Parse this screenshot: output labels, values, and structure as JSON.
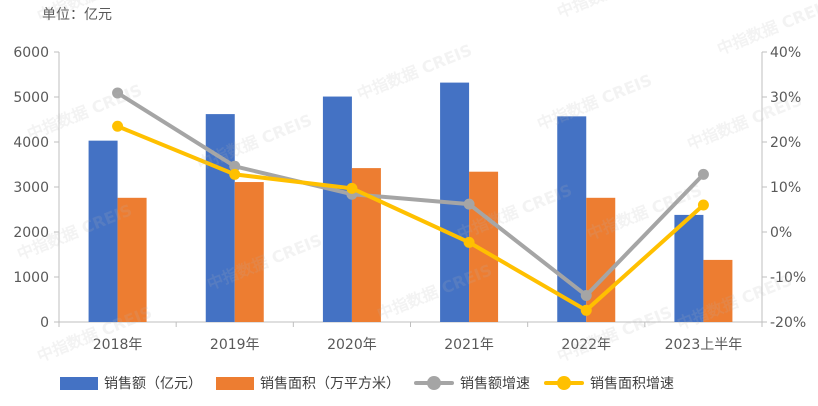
{
  "unit_label": "单位：亿元",
  "watermark": "中指数据 CREIS",
  "colors": {
    "sales_amount": "#4472C4",
    "sales_area": "#ED7D31",
    "amount_growth": "#A5A5A5",
    "area_growth": "#FFC000",
    "axis": "#595959",
    "tick": "#BFBFBF"
  },
  "legend": [
    {
      "label": "销售额（亿元）",
      "kind": "bar",
      "color": "#4472C4"
    },
    {
      "label": "销售面积（万平方米）",
      "kind": "bar",
      "color": "#ED7D31"
    },
    {
      "label": "销售额增速",
      "kind": "line",
      "color": "#A5A5A5"
    },
    {
      "label": "销售面积增速",
      "kind": "line",
      "color": "#FFC000"
    }
  ],
  "chart_data": {
    "type": "bar+line",
    "categories": [
      "2018年",
      "2019年",
      "2020年",
      "2021年",
      "2022年",
      "2023上半年"
    ],
    "left_axis": {
      "min": 0,
      "max": 6000,
      "ticks": [
        0,
        1000,
        2000,
        3000,
        4000,
        5000,
        6000
      ]
    },
    "right_axis": {
      "min": -20,
      "max": 40,
      "ticks": [
        -20,
        -10,
        0,
        10,
        20,
        30,
        40
      ],
      "tick_labels": [
        "-20%",
        "-10%",
        "0%",
        "10%",
        "20%",
        "30%",
        "40%"
      ]
    },
    "series": [
      {
        "name": "销售额（亿元）",
        "type": "bar",
        "axis": "left",
        "values": [
          4030,
          4620,
          5010,
          5320,
          4570,
          2380
        ]
      },
      {
        "name": "销售面积（万平方米）",
        "type": "bar",
        "axis": "left",
        "values": [
          2760,
          3110,
          3420,
          3340,
          2760,
          1380
        ]
      },
      {
        "name": "销售额增速",
        "type": "line",
        "axis": "right",
        "values": [
          30.9,
          14.6,
          8.4,
          6.2,
          -14.1,
          12.8
        ]
      },
      {
        "name": "销售面积增速",
        "type": "line",
        "axis": "right",
        "values": [
          23.5,
          12.8,
          9.7,
          -2.3,
          -17.4,
          6.0
        ]
      }
    ],
    "grid": false,
    "legend_position": "bottom"
  }
}
